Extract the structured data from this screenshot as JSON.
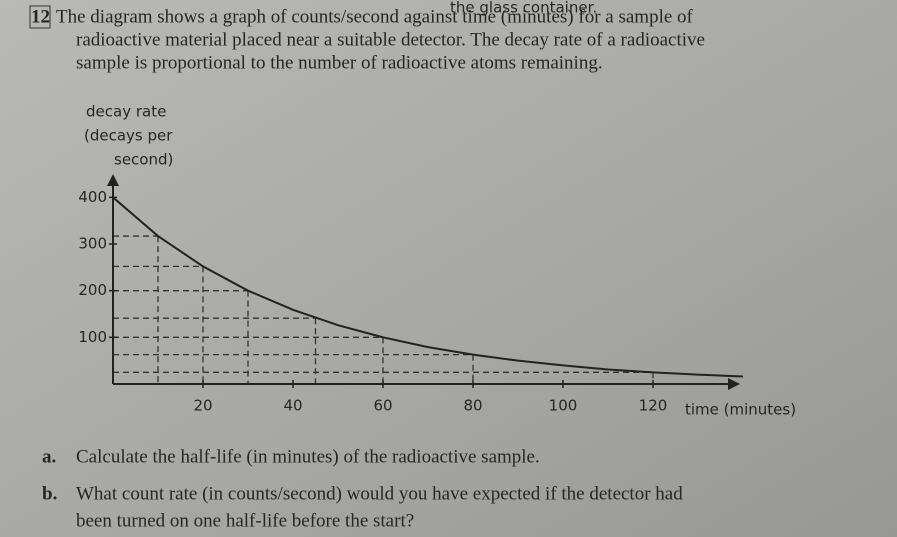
{
  "header": {
    "fragment": "the glass container."
  },
  "question": {
    "number": "12",
    "lines": [
      "The diagram shows a graph of counts/second against time (minutes) for a sample of",
      "radioactive material placed near a suitable detector. The decay rate of a radioactive",
      "sample is proportional to the number of radioactive atoms remaining."
    ]
  },
  "chart_data": {
    "type": "line",
    "y_label": [
      "decay rate",
      "(decays per",
      "second)"
    ],
    "x_label": "time (minutes)",
    "x": [
      0,
      10,
      20,
      30,
      40,
      50,
      60,
      70,
      80,
      90,
      100,
      110,
      120,
      130,
      140
    ],
    "series": [
      {
        "name": "decay rate",
        "color": "#222222",
        "values": [
          400,
          317,
          252,
          200,
          159,
          126,
          100,
          79,
          63,
          50,
          40,
          31,
          25,
          20,
          16
        ]
      }
    ],
    "guide_x": [
      10,
      20,
      30,
      45,
      60,
      80,
      120
    ],
    "guide_y": [
      317,
      252,
      200,
      141,
      100,
      63,
      25
    ],
    "xlim": [
      0,
      140
    ],
    "ylim": [
      0,
      420
    ],
    "xticks": [
      20,
      40,
      60,
      80,
      100,
      120
    ],
    "yticks": [
      100,
      200,
      300,
      400
    ]
  },
  "parts": [
    {
      "label": "a.",
      "lines": [
        "Calculate the half-life (in minutes) of the radioactive sample."
      ]
    },
    {
      "label": "b.",
      "lines": [
        "What count rate (in counts/second) would you have expected if the detector had",
        "been turned on one half-life before the start?"
      ]
    }
  ]
}
